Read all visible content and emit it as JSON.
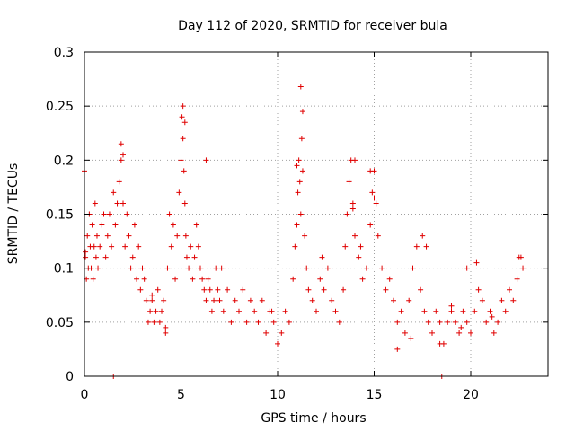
{
  "chart_data": {
    "type": "scatter",
    "title": "Day 112 of 2020, SRMTID for receiver bula",
    "xlabel": "GPS time / hours",
    "ylabel": "SRMTID / TECUs",
    "xlim": [
      0,
      24
    ],
    "ylim": [
      0,
      0.3
    ],
    "xticks": [
      0,
      5,
      10,
      15,
      20
    ],
    "xtick_labels": [
      "0",
      "5",
      "10",
      "15",
      "20"
    ],
    "yticks": [
      0,
      0.05,
      0.1,
      0.15,
      0.2,
      0.25,
      0.3
    ],
    "ytick_labels": [
      "0",
      "0.05",
      "0.1",
      "0.15",
      "0.2",
      "0.25",
      "0.3"
    ],
    "grid": true,
    "marker": "+",
    "series_color": "#e00000",
    "series": [
      {
        "name": "SRMTID",
        "x": [
          0.0,
          0.05,
          0.1,
          0.15,
          0.2,
          0.25,
          0.3,
          0.35,
          0.4,
          0.45,
          0.5,
          0.55,
          0.6,
          0.65,
          0.7,
          0.8,
          0.9,
          1.0,
          1.1,
          1.2,
          1.3,
          1.4,
          1.5,
          1.6,
          1.7,
          1.8,
          1.9,
          2.0,
          2.1,
          2.2,
          2.3,
          2.4,
          2.5,
          2.6,
          2.7,
          2.8,
          2.9,
          3.0,
          3.1,
          3.2,
          3.3,
          3.4,
          3.5,
          3.6,
          3.7,
          3.8,
          3.9,
          4.0,
          4.1,
          4.2,
          4.3,
          4.4,
          4.5,
          4.6,
          4.7,
          4.8,
          4.9,
          5.0,
          5.05,
          5.1,
          5.15,
          5.2,
          5.25,
          5.3,
          5.4,
          5.5,
          5.6,
          5.7,
          5.8,
          5.9,
          6.0,
          6.1,
          6.2,
          6.3,
          6.4,
          6.5,
          6.6,
          6.7,
          6.8,
          6.9,
          7.0,
          7.2,
          7.4,
          7.6,
          7.8,
          8.0,
          8.2,
          8.4,
          8.6,
          8.8,
          9.0,
          9.2,
          9.4,
          9.6,
          9.8,
          10.0,
          10.2,
          10.4,
          10.6,
          10.8,
          10.9,
          11.0,
          11.05,
          11.1,
          11.15,
          11.2,
          11.25,
          11.3,
          11.4,
          11.5,
          11.6,
          11.8,
          12.0,
          12.2,
          12.4,
          12.6,
          12.8,
          13.0,
          13.2,
          13.4,
          13.5,
          13.6,
          13.7,
          13.8,
          13.9,
          14.0,
          14.2,
          14.4,
          14.6,
          14.8,
          14.9,
          15.0,
          15.1,
          15.2,
          15.4,
          15.6,
          15.8,
          16.0,
          16.2,
          16.4,
          16.6,
          16.8,
          17.0,
          17.2,
          17.4,
          17.6,
          17.8,
          18.0,
          18.2,
          18.4,
          18.6,
          18.8,
          19.0,
          19.2,
          19.4,
          19.6,
          19.8,
          20.0,
          20.2,
          20.4,
          20.6,
          20.8,
          21.0,
          21.2,
          21.4,
          21.6,
          21.8,
          22.0,
          22.2,
          22.4,
          22.6,
          22.7,
          0.05,
          1.5,
          1.9,
          2.0,
          5.1,
          5.2,
          6.3,
          11.0,
          11.2,
          11.3,
          13.9,
          14.0,
          14.8,
          15.0,
          16.2,
          17.5,
          17.7,
          18.4,
          18.5,
          19.0,
          19.8,
          20.3,
          21.1,
          22.5,
          3.5,
          4.2,
          7.1,
          9.7,
          12.3,
          14.3,
          16.9,
          19.5
        ],
        "y": [
          0.19,
          0.11,
          0.09,
          0.13,
          0.1,
          0.15,
          0.12,
          0.1,
          0.14,
          0.09,
          0.12,
          0.16,
          0.11,
          0.13,
          0.1,
          0.12,
          0.14,
          0.15,
          0.11,
          0.13,
          0.15,
          0.12,
          0.17,
          0.14,
          0.16,
          0.18,
          0.2,
          0.16,
          0.12,
          0.15,
          0.13,
          0.1,
          0.11,
          0.14,
          0.09,
          0.12,
          0.08,
          0.1,
          0.09,
          0.07,
          0.05,
          0.06,
          0.07,
          0.05,
          0.06,
          0.08,
          0.05,
          0.06,
          0.07,
          0.04,
          0.1,
          0.15,
          0.12,
          0.14,
          0.09,
          0.13,
          0.17,
          0.2,
          0.24,
          0.22,
          0.19,
          0.16,
          0.13,
          0.11,
          0.1,
          0.12,
          0.09,
          0.11,
          0.14,
          0.12,
          0.1,
          0.09,
          0.08,
          0.07,
          0.09,
          0.08,
          0.06,
          0.07,
          0.1,
          0.08,
          0.07,
          0.06,
          0.08,
          0.05,
          0.07,
          0.06,
          0.08,
          0.05,
          0.07,
          0.06,
          0.05,
          0.07,
          0.04,
          0.06,
          0.05,
          0.03,
          0.04,
          0.06,
          0.05,
          0.09,
          0.12,
          0.14,
          0.17,
          0.2,
          0.18,
          0.15,
          0.22,
          0.19,
          0.13,
          0.1,
          0.08,
          0.07,
          0.06,
          0.09,
          0.08,
          0.1,
          0.07,
          0.06,
          0.05,
          0.08,
          0.12,
          0.15,
          0.18,
          0.2,
          0.16,
          0.13,
          0.11,
          0.09,
          0.1,
          0.14,
          0.17,
          0.19,
          0.16,
          0.13,
          0.1,
          0.08,
          0.09,
          0.07,
          0.05,
          0.06,
          0.04,
          0.07,
          0.1,
          0.12,
          0.08,
          0.06,
          0.05,
          0.04,
          0.06,
          0.05,
          0.03,
          0.05,
          0.06,
          0.05,
          0.04,
          0.06,
          0.05,
          0.04,
          0.06,
          0.08,
          0.07,
          0.05,
          0.06,
          0.04,
          0.05,
          0.07,
          0.06,
          0.08,
          0.07,
          0.09,
          0.11,
          0.1,
          0.115,
          0.0,
          0.215,
          0.205,
          0.25,
          0.235,
          0.2,
          0.195,
          0.268,
          0.245,
          0.155,
          0.2,
          0.19,
          0.165,
          0.025,
          0.13,
          0.12,
          0.03,
          0.0,
          0.065,
          0.1,
          0.105,
          0.055,
          0.11,
          0.075,
          0.045,
          0.1,
          0.06,
          0.11,
          0.12,
          0.035,
          0.045
        ]
      }
    ]
  }
}
